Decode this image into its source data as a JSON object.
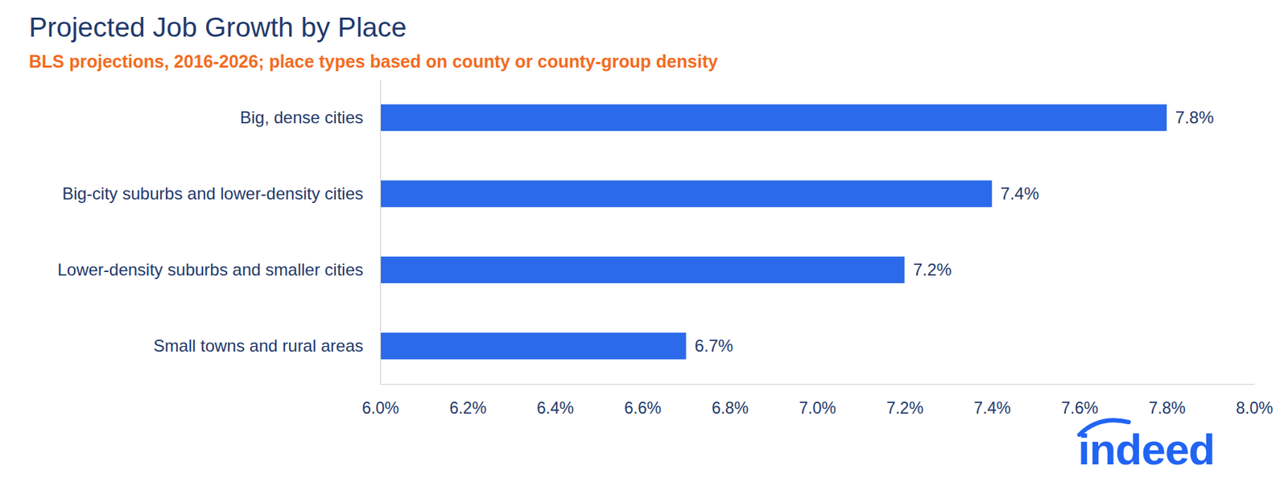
{
  "chart_data": {
    "type": "bar",
    "orientation": "horizontal",
    "title": "Projected Job Growth by Place",
    "subtitle": "BLS projections, 2016-2026; place types based on county or county-group density",
    "categories": [
      "Big, dense cities",
      "Big-city suburbs and lower-density cities",
      "Lower-density suburbs and smaller cities",
      "Small towns and rural areas"
    ],
    "values": [
      7.8,
      7.4,
      7.2,
      6.7
    ],
    "value_labels": [
      "7.8%",
      "7.4%",
      "7.2%",
      "6.7%"
    ],
    "data_labels": true,
    "color": "#2b6aea",
    "xlim": [
      6.0,
      8.0
    ],
    "xticks": [
      {
        "value": 6.0,
        "label": "6.0%"
      },
      {
        "value": 6.2,
        "label": "6.2%"
      },
      {
        "value": 6.4,
        "label": "6.4%"
      },
      {
        "value": 6.6,
        "label": "6.6%"
      },
      {
        "value": 6.8,
        "label": "6.8%"
      },
      {
        "value": 7.0,
        "label": "7.0%"
      },
      {
        "value": 7.2,
        "label": "7.2%"
      },
      {
        "value": 7.4,
        "label": "7.4%"
      },
      {
        "value": 7.6,
        "label": "7.6%"
      },
      {
        "value": 7.8,
        "label": "7.8%"
      },
      {
        "value": 8.0,
        "label": "8.0%"
      }
    ],
    "grid": false,
    "annotations": [
      "indeed"
    ]
  }
}
